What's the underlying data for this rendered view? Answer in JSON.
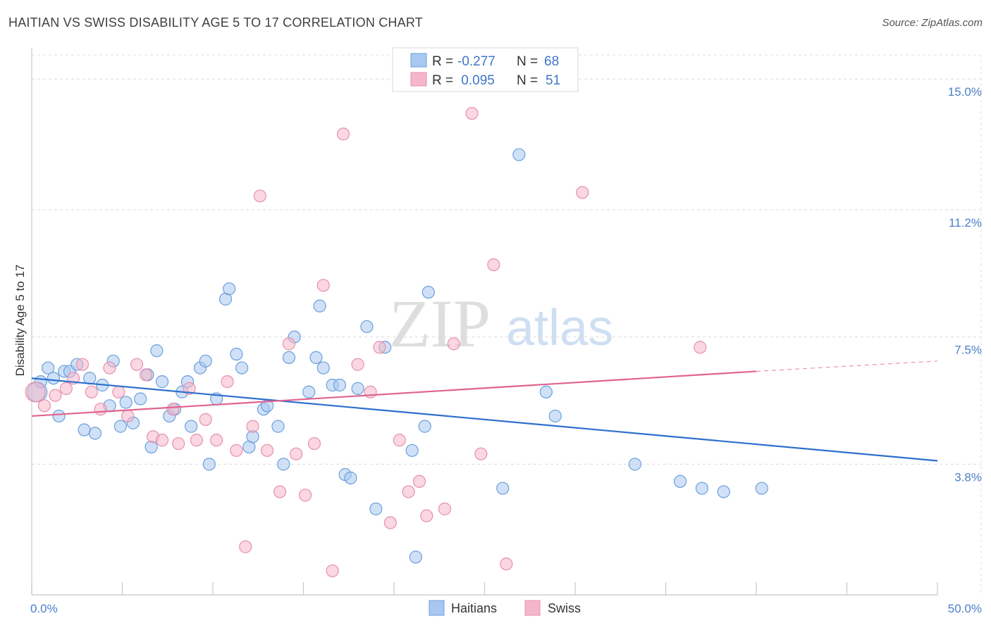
{
  "header": {
    "title": "HAITIAN VS SWISS DISABILITY AGE 5 TO 17 CORRELATION CHART",
    "source": "Source: ZipAtlas.com"
  },
  "watermark": {
    "zip": "ZIP",
    "atlas": "atlas"
  },
  "legend_top": {
    "rows": [
      {
        "r_label": "R = ",
        "r_value": "-0.277",
        "n_label": "N = ",
        "n_value": "68",
        "color": "#a9c8f0"
      },
      {
        "r_label": "R = ",
        "r_value": " 0.095",
        "n_label": "N = ",
        "n_value": "51",
        "color": "#f5b6c9"
      }
    ]
  },
  "legend_bottom": {
    "items": [
      {
        "label": "Haitians",
        "color": "#a9c8f0"
      },
      {
        "label": "Swiss",
        "color": "#f5b6c9"
      }
    ]
  },
  "chart_data": {
    "type": "scatter",
    "title": "HAITIAN VS SWISS DISABILITY AGE 5 TO 17 CORRELATION CHART",
    "xlabel": "",
    "ylabel": "Disability Age 5 to 17",
    "xlim": [
      0,
      50
    ],
    "ylim": [
      0,
      15.7
    ],
    "x_tick_labels": [
      "0.0%",
      "50.0%"
    ],
    "y_ticks": [
      3.8,
      7.5,
      11.2,
      15.0
    ],
    "y_tick_labels": [
      "3.8%",
      "7.5%",
      "11.2%",
      "15.0%"
    ],
    "grid": true,
    "series": [
      {
        "name": "Haitians",
        "color": "#a9c8f0",
        "stroke": "#6a9fdc",
        "line_color": "#2d6fcc",
        "trend": {
          "x": [
            0,
            50
          ],
          "y": [
            6.3,
            3.9
          ]
        },
        "points": [
          [
            0.3,
            5.9
          ],
          [
            0.5,
            6.2
          ],
          [
            0.9,
            6.6
          ],
          [
            1.2,
            6.3
          ],
          [
            1.5,
            5.2
          ],
          [
            1.8,
            6.5
          ],
          [
            2.1,
            6.5
          ],
          [
            2.5,
            6.7
          ],
          [
            2.9,
            4.8
          ],
          [
            3.2,
            6.3
          ],
          [
            3.5,
            4.7
          ],
          [
            3.9,
            6.1
          ],
          [
            4.3,
            5.5
          ],
          [
            4.5,
            6.8
          ],
          [
            4.9,
            4.9
          ],
          [
            5.2,
            5.6
          ],
          [
            5.6,
            5.0
          ],
          [
            6.0,
            5.7
          ],
          [
            6.4,
            6.4
          ],
          [
            6.6,
            4.3
          ],
          [
            6.9,
            7.1
          ],
          [
            7.2,
            6.2
          ],
          [
            7.6,
            5.2
          ],
          [
            7.9,
            5.4
          ],
          [
            8.3,
            5.9
          ],
          [
            8.6,
            6.2
          ],
          [
            8.8,
            4.9
          ],
          [
            9.3,
            6.6
          ],
          [
            9.6,
            6.8
          ],
          [
            9.8,
            3.8
          ],
          [
            10.2,
            5.7
          ],
          [
            10.7,
            8.6
          ],
          [
            10.9,
            8.9
          ],
          [
            11.3,
            7.0
          ],
          [
            11.6,
            6.6
          ],
          [
            12.0,
            4.3
          ],
          [
            12.2,
            4.6
          ],
          [
            12.8,
            5.4
          ],
          [
            13.0,
            5.5
          ],
          [
            13.6,
            4.9
          ],
          [
            13.9,
            3.8
          ],
          [
            14.2,
            6.9
          ],
          [
            14.5,
            7.5
          ],
          [
            15.3,
            5.9
          ],
          [
            15.7,
            6.9
          ],
          [
            15.9,
            8.4
          ],
          [
            16.1,
            6.6
          ],
          [
            16.6,
            6.1
          ],
          [
            17.0,
            6.1
          ],
          [
            17.3,
            3.5
          ],
          [
            17.6,
            3.4
          ],
          [
            18.0,
            6.0
          ],
          [
            18.5,
            7.8
          ],
          [
            19.0,
            2.5
          ],
          [
            19.5,
            7.2
          ],
          [
            21.0,
            4.2
          ],
          [
            21.2,
            1.1
          ],
          [
            21.7,
            4.9
          ],
          [
            21.9,
            8.8
          ],
          [
            26.0,
            3.1
          ],
          [
            26.9,
            12.8
          ],
          [
            28.4,
            5.9
          ],
          [
            28.9,
            5.2
          ],
          [
            33.3,
            3.8
          ],
          [
            35.8,
            3.3
          ],
          [
            37.0,
            3.1
          ],
          [
            38.2,
            3.0
          ],
          [
            40.3,
            3.1
          ]
        ]
      },
      {
        "name": "Swiss",
        "color": "#f5b6c9",
        "stroke": "#e690ad",
        "line_color": "#e0638f",
        "trend": {
          "x": [
            0,
            40
          ],
          "y": [
            5.2,
            6.5
          ]
        },
        "trend_ext": {
          "x": [
            40,
            50
          ],
          "y": [
            6.5,
            6.8
          ]
        },
        "points": [
          [
            0.2,
            5.9
          ],
          [
            0.7,
            5.5
          ],
          [
            1.3,
            5.8
          ],
          [
            1.9,
            6.0
          ],
          [
            2.3,
            6.3
          ],
          [
            2.8,
            6.7
          ],
          [
            3.3,
            5.9
          ],
          [
            3.8,
            5.4
          ],
          [
            4.3,
            6.6
          ],
          [
            4.8,
            5.9
          ],
          [
            5.3,
            5.2
          ],
          [
            5.8,
            6.7
          ],
          [
            6.3,
            6.4
          ],
          [
            6.7,
            4.6
          ],
          [
            7.2,
            4.5
          ],
          [
            7.8,
            5.4
          ],
          [
            8.1,
            4.4
          ],
          [
            8.7,
            6.0
          ],
          [
            9.1,
            4.5
          ],
          [
            9.6,
            5.1
          ],
          [
            10.2,
            4.5
          ],
          [
            10.8,
            6.2
          ],
          [
            11.3,
            4.2
          ],
          [
            11.8,
            1.4
          ],
          [
            12.2,
            4.9
          ],
          [
            12.6,
            11.6
          ],
          [
            13.0,
            4.2
          ],
          [
            13.7,
            3.0
          ],
          [
            14.2,
            7.3
          ],
          [
            14.6,
            4.1
          ],
          [
            15.1,
            2.9
          ],
          [
            15.6,
            4.4
          ],
          [
            16.1,
            9.0
          ],
          [
            16.6,
            0.7
          ],
          [
            17.2,
            13.4
          ],
          [
            18.0,
            6.7
          ],
          [
            18.7,
            5.9
          ],
          [
            19.2,
            7.2
          ],
          [
            19.8,
            2.1
          ],
          [
            20.3,
            4.5
          ],
          [
            20.8,
            3.0
          ],
          [
            21.4,
            3.3
          ],
          [
            21.8,
            2.3
          ],
          [
            22.8,
            2.5
          ],
          [
            23.3,
            7.3
          ],
          [
            24.3,
            14.0
          ],
          [
            24.8,
            4.1
          ],
          [
            25.5,
            9.6
          ],
          [
            26.2,
            0.9
          ],
          [
            30.4,
            11.7
          ],
          [
            36.9,
            7.2
          ]
        ]
      }
    ]
  }
}
